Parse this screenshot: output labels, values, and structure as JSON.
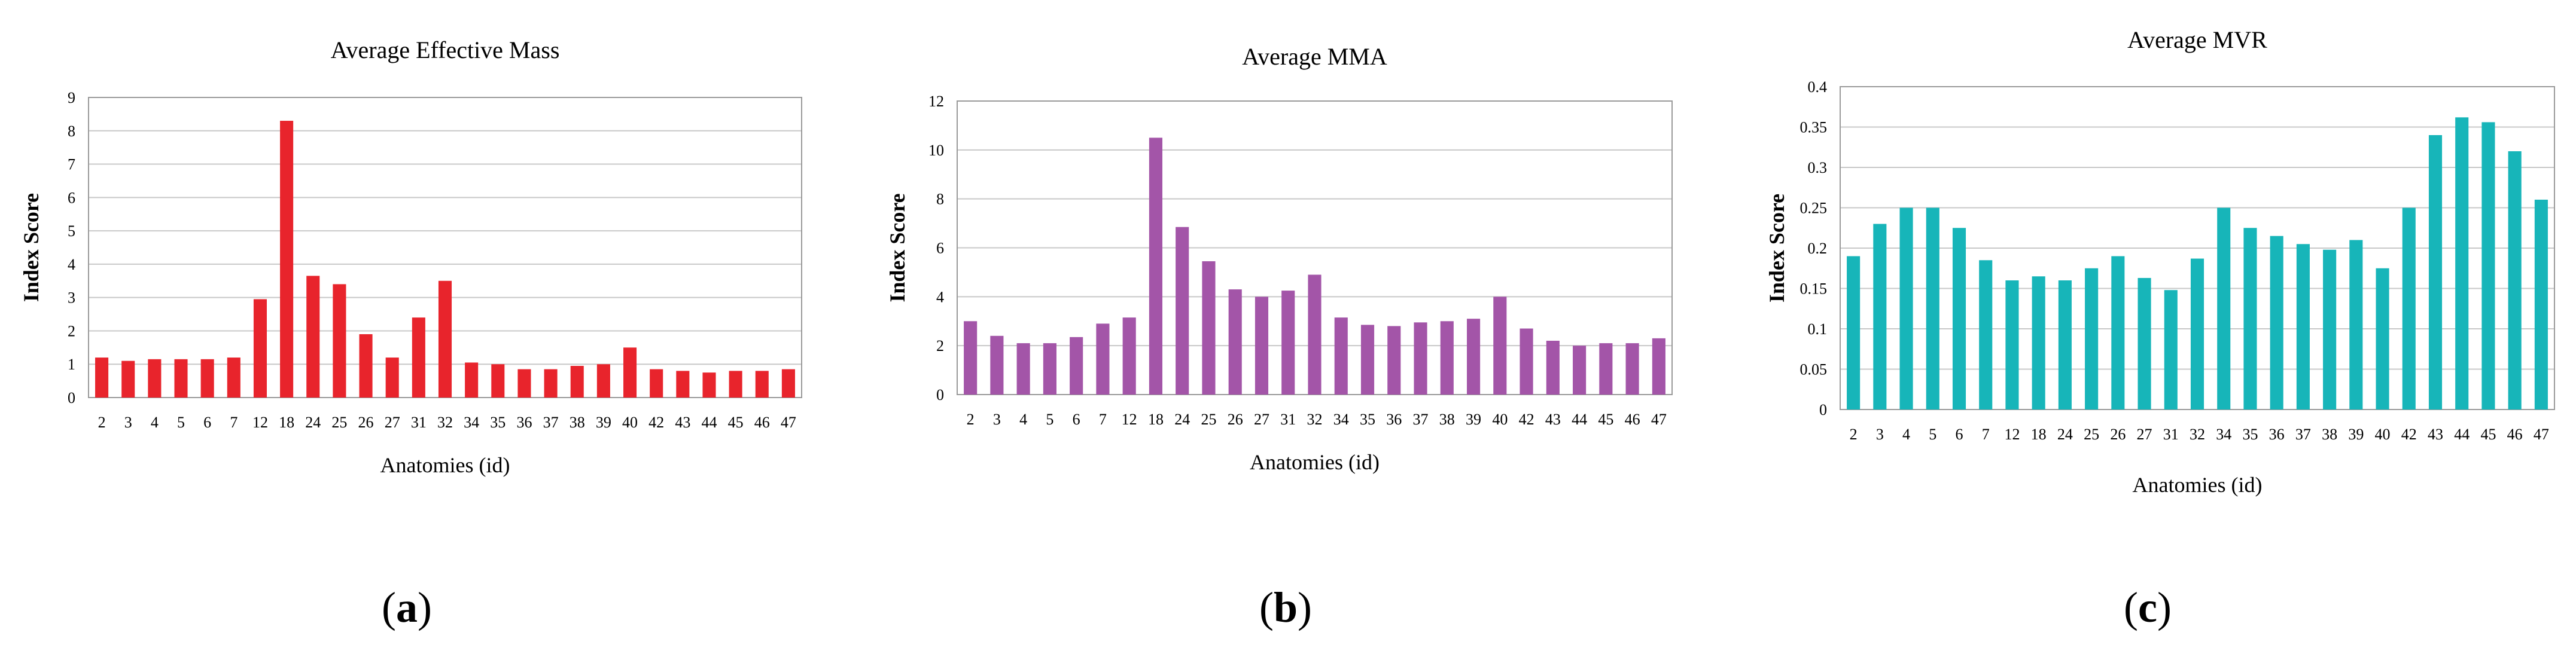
{
  "figure": {
    "captions": [
      "a",
      "b",
      "c"
    ]
  },
  "chart_data": [
    {
      "type": "bar",
      "title": "Average Effective Mass",
      "xlabel": "Anatomies (id)",
      "ylabel": "Index Score",
      "ylim": [
        0,
        9
      ],
      "yticks": [
        "0",
        "1",
        "2",
        "3",
        "4",
        "5",
        "6",
        "7",
        "8",
        "9"
      ],
      "grid": true,
      "color": "#e8242c",
      "categories": [
        "2",
        "3",
        "4",
        "5",
        "6",
        "7",
        "12",
        "18",
        "24",
        "25",
        "26",
        "27",
        "31",
        "32",
        "34",
        "35",
        "36",
        "37",
        "38",
        "39",
        "40",
        "42",
        "43",
        "44",
        "45",
        "46",
        "47"
      ],
      "values": [
        1.2,
        1.1,
        1.15,
        1.15,
        1.15,
        1.2,
        2.95,
        8.3,
        3.65,
        3.4,
        1.9,
        1.2,
        2.4,
        3.5,
        1.05,
        1.0,
        0.85,
        0.85,
        0.95,
        1.0,
        1.5,
        0.85,
        0.8,
        0.75,
        0.8,
        0.8,
        0.85
      ]
    },
    {
      "type": "bar",
      "title": "Average MMA",
      "xlabel": "Anatomies (id)",
      "ylabel": "Index Score",
      "ylim": [
        0,
        12
      ],
      "yticks": [
        "0",
        "2",
        "4",
        "6",
        "8",
        "10",
        "12"
      ],
      "grid": true,
      "color": "#a355a8",
      "categories": [
        "2",
        "3",
        "4",
        "5",
        "6",
        "7",
        "12",
        "18",
        "24",
        "25",
        "26",
        "27",
        "31",
        "32",
        "34",
        "35",
        "36",
        "37",
        "38",
        "39",
        "40",
        "42",
        "43",
        "44",
        "45",
        "46",
        "47"
      ],
      "values": [
        3.0,
        2.4,
        2.1,
        2.1,
        2.35,
        2.9,
        3.15,
        10.5,
        6.85,
        5.45,
        4.3,
        4.0,
        4.25,
        4.9,
        3.15,
        2.85,
        2.8,
        2.95,
        3.0,
        3.1,
        4.0,
        2.7,
        2.2,
        2.0,
        2.1,
        2.1,
        2.3
      ]
    },
    {
      "type": "bar",
      "title": "Average MVR",
      "xlabel": "Anatomies (id)",
      "ylabel": "Index Score",
      "ylim": [
        0,
        0.4
      ],
      "yticks": [
        "0",
        "0.05",
        "0.1",
        "0.15",
        "0.2",
        "0.25",
        "0.3",
        "0.35",
        "0.4"
      ],
      "grid": true,
      "color": "#17b5b9",
      "categories": [
        "2",
        "3",
        "4",
        "5",
        "6",
        "7",
        "12",
        "18",
        "24",
        "25",
        "26",
        "27",
        "31",
        "32",
        "34",
        "35",
        "36",
        "37",
        "38",
        "39",
        "40",
        "42",
        "43",
        "44",
        "45",
        "46",
        "47"
      ],
      "values": [
        0.19,
        0.23,
        0.25,
        0.25,
        0.225,
        0.185,
        0.16,
        0.165,
        0.16,
        0.175,
        0.19,
        0.163,
        0.148,
        0.187,
        0.25,
        0.225,
        0.215,
        0.205,
        0.198,
        0.21,
        0.175,
        0.25,
        0.34,
        0.362,
        0.356,
        0.32,
        0.26
      ]
    }
  ]
}
